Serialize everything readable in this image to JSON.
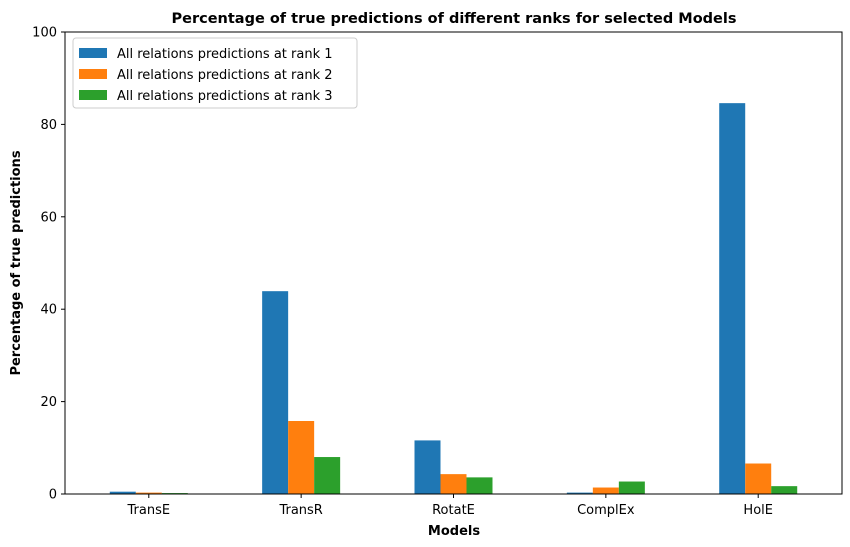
{
  "chart_data": {
    "type": "bar",
    "title": "Percentage of true predictions of different ranks for selected Models",
    "xlabel": "Models",
    "ylabel": "Percentage of true predictions",
    "categories": [
      "TransE",
      "TransR",
      "RotatE",
      "ComplEx",
      "HolE"
    ],
    "ylim": [
      0,
      100
    ],
    "yticks": [
      0,
      20,
      40,
      60,
      80,
      100
    ],
    "grid": false,
    "legend_position": "top-left",
    "series": [
      {
        "name": "All relations predictions at rank 1",
        "color": "#1f77b4",
        "values": [
          0.5,
          43.9,
          11.6,
          0.3,
          84.6
        ]
      },
      {
        "name": "All relations predictions at rank 2",
        "color": "#ff7f0e",
        "values": [
          0.3,
          15.8,
          4.3,
          1.4,
          6.6
        ]
      },
      {
        "name": "All relations predictions at rank 3",
        "color": "#2ca02c",
        "values": [
          0.2,
          8.0,
          3.6,
          2.7,
          1.7
        ]
      }
    ]
  }
}
